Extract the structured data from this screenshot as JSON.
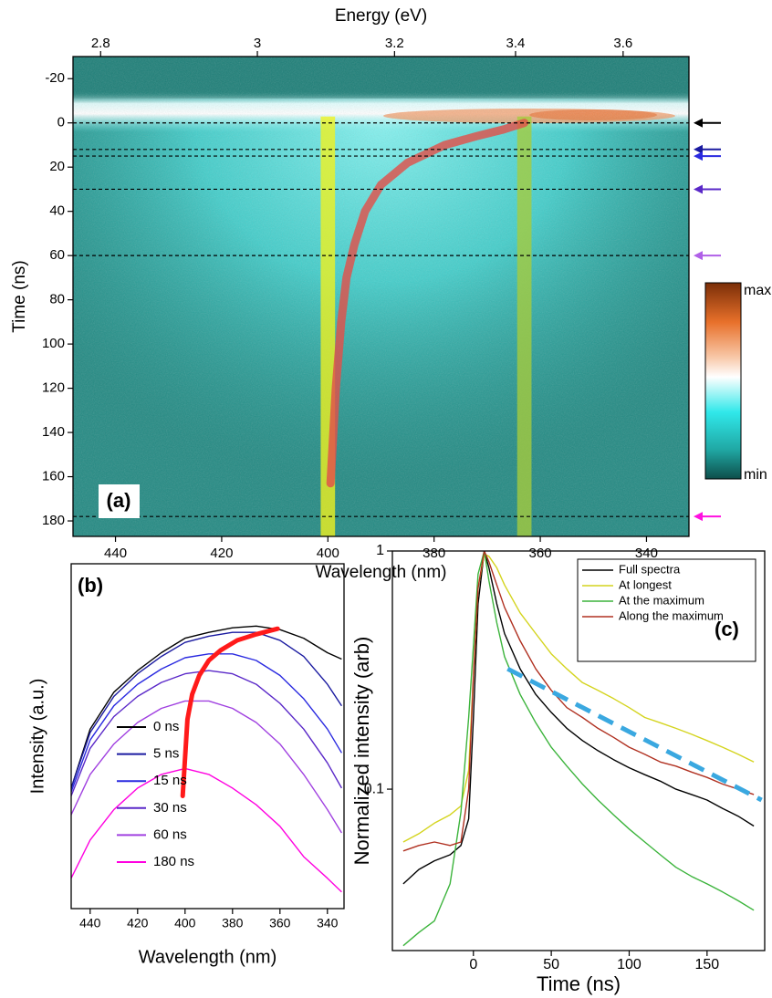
{
  "chart_data": [
    {
      "type": "heatmap",
      "label": "(a)",
      "xlabel": "Wavelength (nm)",
      "ylabel": "Time (ns)",
      "x2label": "Energy (eV)",
      "xlim": [
        448,
        332
      ],
      "ylim": [
        187,
        -30
      ],
      "xticks": [
        440,
        420,
        400,
        380,
        360,
        340
      ],
      "yticks": [
        -20,
        0,
        20,
        40,
        60,
        80,
        100,
        120,
        140,
        160,
        180
      ],
      "x2ticks": [
        2.8,
        3,
        3.2,
        3.4,
        3.6
      ],
      "colorbar_labels": [
        "max",
        "min"
      ],
      "cuts": {
        "values": [
          0,
          12,
          15,
          30,
          60,
          178
        ],
        "colors": [
          "#000000",
          "#1a1aa0",
          "#2a2ae0",
          "#5a28c8",
          "#b060e8",
          "#ff10e0"
        ]
      },
      "bands": {
        "values": [
          400,
          363
        ],
        "width": 2.7,
        "colors": [
          "#f2f21e",
          "#a6cc3c"
        ]
      },
      "peak": {
        "x": [
          363,
          367,
          372,
          378,
          385,
          390,
          393,
          395,
          396.5,
          397.5,
          398.5,
          399.5
        ],
        "values": [
          0,
          3,
          6,
          10,
          18,
          28,
          40,
          55,
          70,
          90,
          120,
          163
        ],
        "color": "#e0504a"
      }
    },
    {
      "type": "line",
      "label": "(b)",
      "xlabel": "Wavelength (nm)",
      "ylabel": "Intensity (a.u.)",
      "log_y": true,
      "xlim": [
        448,
        333
      ],
      "ylim": [
        0.02,
        2
      ],
      "xticks": [
        440,
        420,
        400,
        380,
        360,
        340
      ],
      "x": [
        448,
        440,
        430,
        420,
        410,
        400,
        390,
        380,
        370,
        360,
        350,
        340,
        334
      ],
      "series": [
        {
          "name": "0 ns",
          "color": "#000000",
          "values": [
            0.1,
            0.22,
            0.36,
            0.48,
            0.61,
            0.74,
            0.8,
            0.85,
            0.87,
            0.83,
            0.74,
            0.61,
            0.56
          ]
        },
        {
          "name": "5 ns",
          "color": "#1a1aa0",
          "values": [
            0.1,
            0.21,
            0.34,
            0.46,
            0.58,
            0.7,
            0.76,
            0.8,
            0.8,
            0.72,
            0.58,
            0.4,
            0.3
          ]
        },
        {
          "name": "15 ns",
          "color": "#2a2ae0",
          "values": [
            0.095,
            0.19,
            0.3,
            0.4,
            0.49,
            0.57,
            0.6,
            0.6,
            0.55,
            0.45,
            0.33,
            0.22,
            0.16
          ]
        },
        {
          "name": "30 ns",
          "color": "#5a28c8",
          "values": [
            0.09,
            0.17,
            0.26,
            0.34,
            0.41,
            0.46,
            0.48,
            0.46,
            0.4,
            0.31,
            0.22,
            0.14,
            0.1
          ]
        },
        {
          "name": "60 ns",
          "color": "#a040e0",
          "values": [
            0.07,
            0.12,
            0.18,
            0.24,
            0.29,
            0.32,
            0.32,
            0.29,
            0.24,
            0.18,
            0.12,
            0.075,
            0.055
          ]
        },
        {
          "name": "180 ns",
          "color": "#ff00e0",
          "values": [
            0.03,
            0.05,
            0.075,
            0.1,
            0.12,
            0.13,
            0.12,
            0.1,
            0.08,
            0.06,
            0.04,
            0.03,
            0.025
          ]
        }
      ],
      "peak": {
        "x": [
          401,
          400,
          399,
          397,
          394,
          390,
          385,
          378,
          370,
          361
        ],
        "values": [
          0.09,
          0.15,
          0.25,
          0.35,
          0.45,
          0.55,
          0.63,
          0.72,
          0.78,
          0.84
        ],
        "color": "#ff1a1a"
      }
    },
    {
      "type": "line",
      "label": "(c)",
      "xlabel": "Time (ns)",
      "ylabel": "Normalized intensity (arb)",
      "log_y": true,
      "xlim": [
        -52,
        187
      ],
      "ylim": [
        0.021,
        1
      ],
      "xticks": [
        0,
        50,
        100,
        150
      ],
      "yticks": [
        1,
        0.1
      ],
      "x": [
        -45,
        -35,
        -25,
        -15,
        -8,
        -3,
        0,
        3,
        7,
        10,
        15,
        20,
        30,
        40,
        50,
        60,
        70,
        80,
        90,
        100,
        110,
        120,
        130,
        140,
        150,
        160,
        170,
        180
      ],
      "series": [
        {
          "name": "Full spectra",
          "color": "#000000",
          "values": [
            0.04,
            0.046,
            0.05,
            0.053,
            0.058,
            0.075,
            0.2,
            0.6,
            1,
            0.85,
            0.6,
            0.45,
            0.32,
            0.25,
            0.21,
            0.18,
            0.16,
            0.145,
            0.133,
            0.123,
            0.115,
            0.108,
            0.1,
            0.095,
            0.09,
            0.083,
            0.077,
            0.07
          ]
        },
        {
          "name": "At longest",
          "color": "#d4d41e",
          "values": [
            0.06,
            0.065,
            0.072,
            0.078,
            0.085,
            0.12,
            0.3,
            0.7,
            0.97,
            0.95,
            0.85,
            0.72,
            0.55,
            0.45,
            0.37,
            0.32,
            0.28,
            0.26,
            0.24,
            0.22,
            0.2,
            0.19,
            0.18,
            0.17,
            0.16,
            0.15,
            0.14,
            0.13
          ]
        },
        {
          "name": "At the maximum",
          "color": "#3cb43c",
          "values": [
            0.022,
            0.025,
            0.028,
            0.04,
            0.08,
            0.2,
            0.4,
            0.8,
            1,
            0.75,
            0.5,
            0.36,
            0.25,
            0.19,
            0.15,
            0.125,
            0.105,
            0.09,
            0.078,
            0.068,
            0.06,
            0.053,
            0.047,
            0.043,
            0.04,
            0.037,
            0.034,
            0.031
          ]
        },
        {
          "name": "Along the maximum",
          "color": "#b03020",
          "values": [
            0.055,
            0.058,
            0.06,
            0.058,
            0.06,
            0.1,
            0.3,
            0.7,
            1,
            0.9,
            0.72,
            0.58,
            0.42,
            0.32,
            0.26,
            0.22,
            0.2,
            0.18,
            0.165,
            0.15,
            0.14,
            0.13,
            0.125,
            0.118,
            0.112,
            0.105,
            0.1,
            0.095
          ]
        }
      ],
      "fit": {
        "x": [
          22,
          185
        ],
        "values": [
          0.32,
          0.09
        ],
        "color": "#3aa8e0"
      }
    }
  ]
}
